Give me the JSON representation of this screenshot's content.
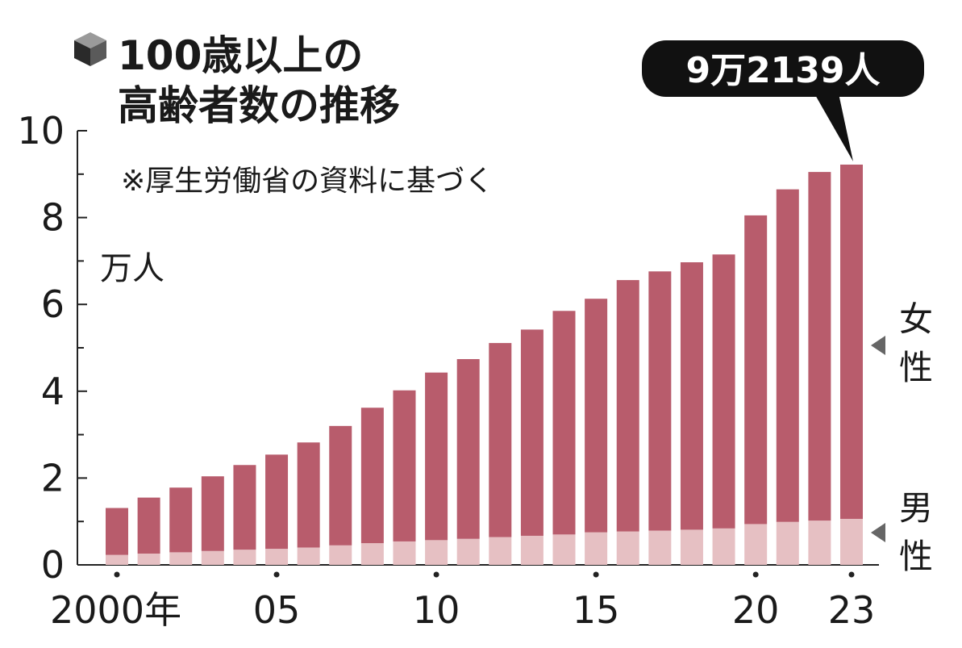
{
  "header": {
    "icon": "cube-icon",
    "title_line1": "100歳以上の",
    "title_line2": "高齢者数の推移",
    "note": "※厚生労働省の資料に基づく"
  },
  "unit_label": "万人",
  "callout": "9万2139人",
  "legend": {
    "female": "女性",
    "male": "男性"
  },
  "x_tick_labels": [
    "2000年",
    "05",
    "10",
    "15",
    "20",
    "23"
  ],
  "colors": {
    "female": "#b85c6c",
    "male": "#e6c0c3",
    "text": "#1a1a1a"
  },
  "chart_data": {
    "type": "bar",
    "stacked": true,
    "categories": [
      "2000",
      "2001",
      "2002",
      "2003",
      "2004",
      "2005",
      "2006",
      "2007",
      "2008",
      "2009",
      "2010",
      "2011",
      "2012",
      "2013",
      "2014",
      "2015",
      "2016",
      "2017",
      "2018",
      "2019",
      "2020",
      "2021",
      "2022",
      "2023"
    ],
    "series": [
      {
        "name": "男性",
        "values": [
          0.23,
          0.26,
          0.29,
          0.32,
          0.35,
          0.37,
          0.4,
          0.45,
          0.5,
          0.54,
          0.57,
          0.6,
          0.64,
          0.67,
          0.7,
          0.75,
          0.77,
          0.79,
          0.81,
          0.84,
          0.94,
          0.99,
          1.02,
          1.06
        ]
      },
      {
        "name": "女性",
        "values": [
          1.08,
          1.29,
          1.49,
          1.72,
          1.95,
          2.17,
          2.42,
          2.75,
          3.12,
          3.48,
          3.86,
          4.14,
          4.47,
          4.75,
          5.15,
          5.38,
          5.79,
          5.97,
          6.16,
          6.31,
          7.11,
          7.66,
          8.03,
          8.16
        ]
      }
    ],
    "xlabel": "",
    "ylabel": "万人",
    "ylim": [
      0,
      10
    ],
    "yticks": [
      0,
      2,
      4,
      6,
      8,
      10
    ],
    "annotations": [
      "9万2139人"
    ]
  }
}
